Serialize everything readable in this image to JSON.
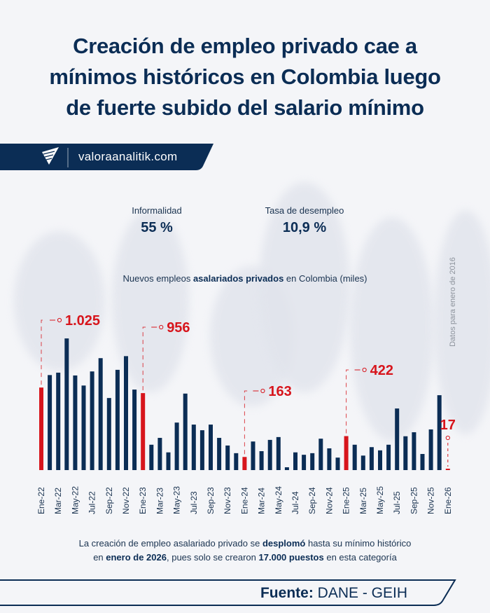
{
  "header": {
    "title_lines": [
      "Creación de empleo privado cae a",
      "mínimos históricos en Colombia luego",
      "de fuerte subido del salario mínimo"
    ],
    "site": "valoraanalitik.com",
    "logo_icon": "paper-plane-logo-icon"
  },
  "stats": [
    {
      "label": "Informalidad",
      "value": "55 %"
    },
    {
      "label": "Tasa de desempleo",
      "value": "10,9 %"
    }
  ],
  "chart_title": {
    "pre": "Nuevos empleos ",
    "bold": "asalariados privados",
    "post": " en Colombia (miles)"
  },
  "side_note": "Datos para enero de 2016",
  "chart_data": {
    "type": "bar",
    "title": "Nuevos empleos asalariados privados en Colombia (miles)",
    "categories": [
      "Ene-22",
      "Feb-22",
      "Mar-22",
      "Abr-22",
      "May-22",
      "Jun-22",
      "Jul-22",
      "Ago-22",
      "Sep-22",
      "Oct-22",
      "Nov-22",
      "Dic-22",
      "Ene-23",
      "Feb-23",
      "Mar-23",
      "Abr-23",
      "May-23",
      "Jun-23",
      "Jul-23",
      "Ago-23",
      "Sep-23",
      "Oct-23",
      "Nov-23",
      "Dic-23",
      "Ene-24",
      "Feb-24",
      "Mar-24",
      "Abr-24",
      "May-24",
      "Jun-24",
      "Jul-24",
      "Ago-24",
      "Sep-24",
      "Oct-24",
      "Nov-24",
      "Dic-24",
      "Ene-25",
      "Feb-25",
      "Mar-25",
      "Abr-25",
      "May-25",
      "Jun-25",
      "Jul-25",
      "Ago-25",
      "Sep-25",
      "Oct-25",
      "Nov-25",
      "Dic-25",
      "Ene-26"
    ],
    "tick_labels": [
      "Ene-22",
      "Mar-22",
      "May-22",
      "Jul-22",
      "Sep-22",
      "Nov-22",
      "Ene-23",
      "Mar-23",
      "May-23",
      "Jul-23",
      "Sep-23",
      "Nov-23",
      "Ene-24",
      "Mar-24",
      "May-24",
      "Jul-24",
      "Sep-24",
      "Nov-24",
      "Ene-25",
      "Mar-25",
      "May-25",
      "Jul-25",
      "Sep-25",
      "Nov-25",
      "Ene-26"
    ],
    "values": [
      1025,
      1180,
      1210,
      1635,
      1175,
      1050,
      1225,
      1390,
      895,
      1245,
      1415,
      1000,
      956,
      315,
      400,
      220,
      590,
      950,
      565,
      495,
      565,
      400,
      305,
      210,
      163,
      355,
      235,
      375,
      410,
      35,
      220,
      190,
      210,
      390,
      270,
      155,
      422,
      315,
      180,
      285,
      245,
      315,
      765,
      420,
      470,
      200,
      505,
      930,
      17
    ],
    "highlighted": [
      {
        "category": "Ene-22",
        "label": "1.025"
      },
      {
        "category": "Ene-23",
        "label": "956"
      },
      {
        "category": "Ene-24",
        "label": "163"
      },
      {
        "category": "Ene-25",
        "label": "422"
      },
      {
        "category": "Ene-26",
        "label": "17"
      }
    ],
    "units": "miles",
    "grid": false,
    "colors": {
      "bar": "#0b2d55",
      "highlight": "#d7151c"
    }
  },
  "caption": {
    "l1_pre": "La creación de empleo asalariado privado se ",
    "l1_bold": "desplomó",
    "l1_post": " hasta su mínimo histórico",
    "l2_pre": "en ",
    "l2_bold1": "enero de 2026",
    "l2_mid": ", pues solo se crearon ",
    "l2_bold2": "17.000 puestos",
    "l2_post": " en esta categoría"
  },
  "footer": {
    "label": "Fuente:",
    "source": " DANE - GEIH"
  }
}
